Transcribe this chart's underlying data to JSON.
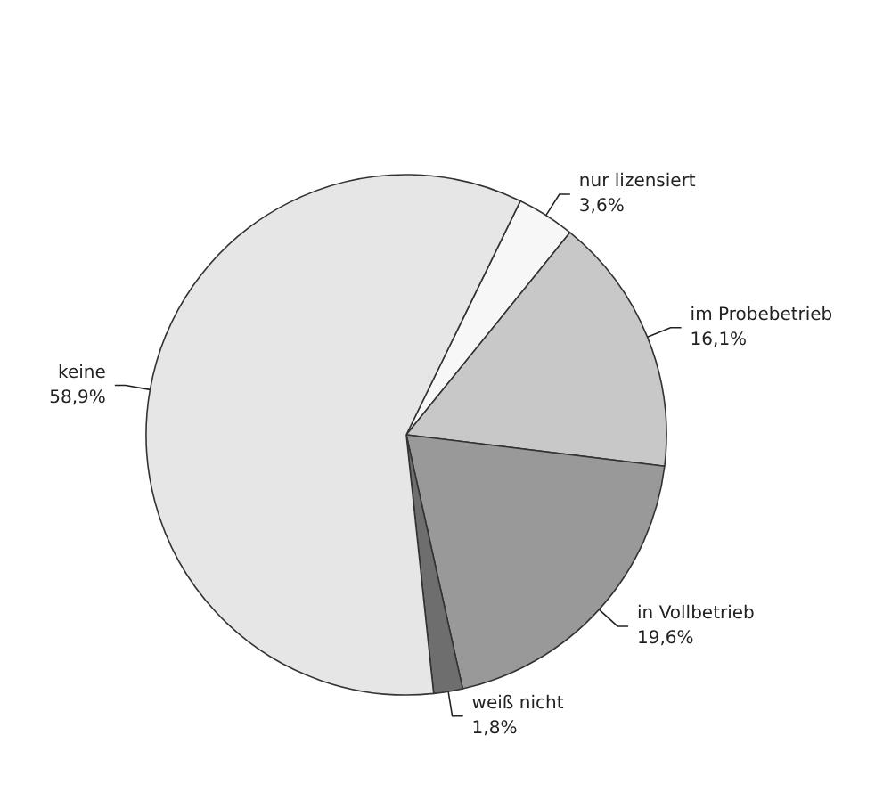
{
  "chart_data": {
    "type": "pie",
    "categories": [
      "nur lizensiert",
      "im Probebetrieb",
      "in Vollbetrieb",
      "weiß nicht",
      "keine"
    ],
    "values": [
      3.6,
      16.1,
      19.6,
      1.8,
      58.9
    ],
    "colors": [
      "#f7f7f7",
      "#c8c8c8",
      "#999999",
      "#6e6e6e",
      "#e6e6e6"
    ],
    "value_labels": [
      "3,6%",
      "16,1%",
      "19,6%",
      "1,8%",
      "58,9%"
    ],
    "legend": false
  }
}
